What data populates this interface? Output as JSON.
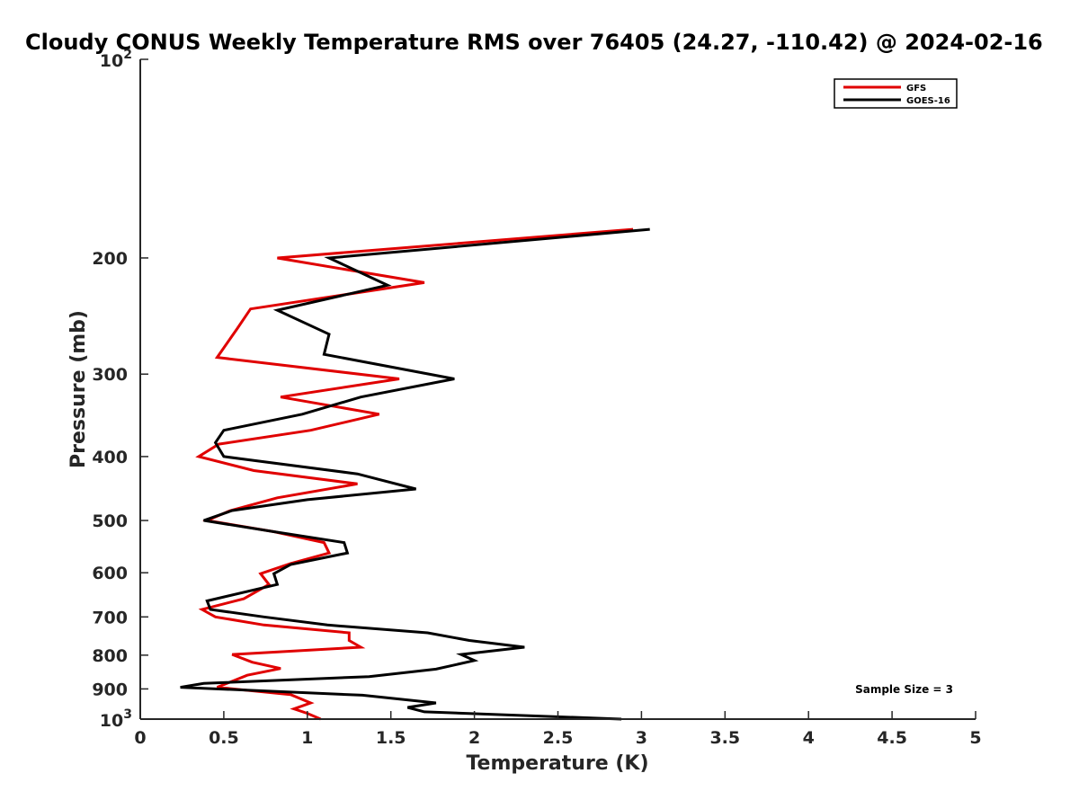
{
  "chart_data": {
    "type": "line",
    "title": "Cloudy CONUS Weekly Temperature RMS over 76405 (24.27, -110.42) @ 2024-02-16",
    "xlabel": "Temperature (K)",
    "ylabel": "Pressure (mb)",
    "xlim": [
      0,
      5
    ],
    "ylim": [
      1000,
      100
    ],
    "yscale": "log",
    "xticks": [
      0,
      0.5,
      1,
      1.5,
      2,
      2.5,
      3,
      3.5,
      4,
      4.5,
      5
    ],
    "xtick_labels": [
      "0",
      "0.5",
      "1",
      "1.5",
      "2",
      "2.5",
      "3",
      "3.5",
      "4",
      "4.5",
      "5"
    ],
    "yticks": [
      100,
      200,
      300,
      400,
      500,
      600,
      700,
      800,
      900,
      1000
    ],
    "ytick_labels": [
      {
        "base": "10",
        "exp": "2"
      },
      {
        "base": "200"
      },
      {
        "base": "300"
      },
      {
        "base": "400"
      },
      {
        "base": "500"
      },
      {
        "base": "600"
      },
      {
        "base": "700"
      },
      {
        "base": "800"
      },
      {
        "base": "900"
      },
      {
        "base": "10",
        "exp": "3"
      }
    ],
    "legend_position": "top-right",
    "annotation": "Sample Size = 3",
    "grid": false,
    "series": [
      {
        "name": "GFS",
        "color": "#e00000",
        "points": [
          [
            2.95,
            181
          ],
          [
            0.82,
            200
          ],
          [
            1.7,
            218
          ],
          [
            0.66,
            239
          ],
          [
            0.58,
            256
          ],
          [
            0.46,
            283
          ],
          [
            1.55,
            305
          ],
          [
            0.84,
            325
          ],
          [
            1.43,
            345
          ],
          [
            1.02,
            365
          ],
          [
            0.47,
            383
          ],
          [
            0.35,
            400
          ],
          [
            0.68,
            420
          ],
          [
            1.3,
            440
          ],
          [
            0.82,
            462
          ],
          [
            0.54,
            483
          ],
          [
            0.4,
            500
          ],
          [
            0.8,
            520
          ],
          [
            1.1,
            540
          ],
          [
            1.13,
            560
          ],
          [
            0.9,
            581
          ],
          [
            0.72,
            602
          ],
          [
            0.77,
            625
          ],
          [
            0.62,
            657
          ],
          [
            0.37,
            682
          ],
          [
            0.45,
            700
          ],
          [
            0.74,
            720
          ],
          [
            1.25,
            740
          ],
          [
            1.25,
            760
          ],
          [
            1.32,
            778
          ],
          [
            0.55,
            798
          ],
          [
            0.67,
            820
          ],
          [
            0.84,
            838
          ],
          [
            0.64,
            858
          ],
          [
            0.46,
            895
          ],
          [
            0.9,
            918
          ],
          [
            1.02,
            945
          ],
          [
            0.92,
            965
          ],
          [
            1.0,
            980
          ],
          [
            1.08,
            1000
          ]
        ]
      },
      {
        "name": "GOES-16",
        "color": "#000000",
        "points": [
          [
            3.05,
            181
          ],
          [
            1.13,
            200
          ],
          [
            1.48,
            220
          ],
          [
            0.82,
            240
          ],
          [
            1.13,
            261
          ],
          [
            1.1,
            280
          ],
          [
            1.88,
            305
          ],
          [
            1.32,
            325
          ],
          [
            0.97,
            345
          ],
          [
            0.5,
            365
          ],
          [
            0.45,
            381
          ],
          [
            0.5,
            400
          ],
          [
            1.3,
            425
          ],
          [
            1.65,
            448
          ],
          [
            1.0,
            465
          ],
          [
            0.55,
            483
          ],
          [
            0.38,
            500
          ],
          [
            0.8,
            520
          ],
          [
            1.22,
            540
          ],
          [
            1.24,
            560
          ],
          [
            0.9,
            583
          ],
          [
            0.8,
            602
          ],
          [
            0.82,
            625
          ],
          [
            0.4,
            662
          ],
          [
            0.42,
            682
          ],
          [
            0.74,
            700
          ],
          [
            1.12,
            720
          ],
          [
            1.72,
            740
          ],
          [
            1.97,
            760
          ],
          [
            2.3,
            778
          ],
          [
            1.92,
            798
          ],
          [
            2.0,
            815
          ],
          [
            1.77,
            840
          ],
          [
            1.37,
            862
          ],
          [
            0.38,
            883
          ],
          [
            0.24,
            895
          ],
          [
            1.33,
            920
          ],
          [
            1.77,
            945
          ],
          [
            1.6,
            960
          ],
          [
            1.7,
            975
          ],
          [
            2.88,
            1000
          ]
        ]
      }
    ]
  }
}
